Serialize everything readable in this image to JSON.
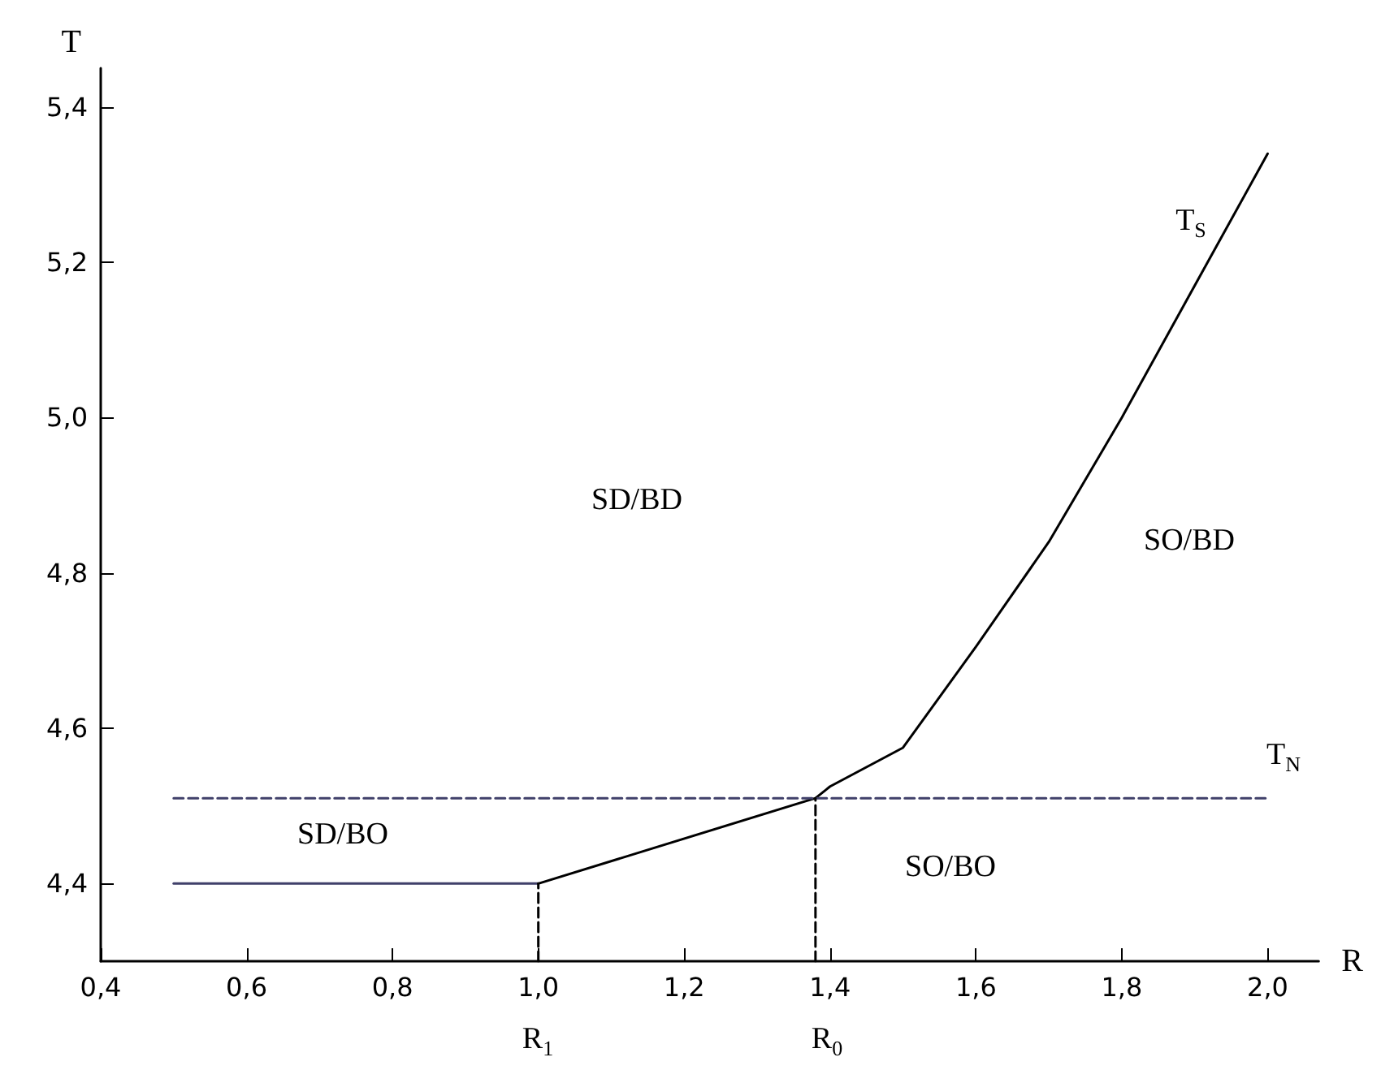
{
  "chart_data": {
    "type": "line",
    "xlabel": "R",
    "ylabel": "T",
    "xlim": [
      0.4,
      2.07
    ],
    "ylim": [
      4.3,
      5.45
    ],
    "xticks": [
      {
        "value": 0.4,
        "label": "0,4"
      },
      {
        "value": 0.6,
        "label": "0,6"
      },
      {
        "value": 0.8,
        "label": "0,8"
      },
      {
        "value": 1.0,
        "label": "1,0"
      },
      {
        "value": 1.2,
        "label": "1,2"
      },
      {
        "value": 1.4,
        "label": "1,4"
      },
      {
        "value": 1.6,
        "label": "1,6"
      },
      {
        "value": 1.8,
        "label": "1,8"
      },
      {
        "value": 2.0,
        "label": "2,0"
      }
    ],
    "yticks": [
      {
        "value": 4.4,
        "label": "4,4"
      },
      {
        "value": 4.6,
        "label": "4,6"
      },
      {
        "value": 4.8,
        "label": "4,8"
      },
      {
        "value": 5.0,
        "label": "5,0"
      },
      {
        "value": 5.2,
        "label": "5,2"
      },
      {
        "value": 5.4,
        "label": "5,4"
      }
    ],
    "grid": false,
    "marker": "none",
    "series": [
      {
        "color": "#40406a",
        "x": [
          0.5,
          1.0
        ],
        "values": [
          4.4,
          4.4
        ],
        "line_style": "solid"
      },
      {
        "color": "#000000",
        "x": [
          1.0,
          1.38,
          1.4,
          1.5,
          1.6,
          1.7,
          1.8,
          1.9,
          2.0
        ],
        "values": [
          4.4,
          4.51,
          4.525,
          4.575,
          4.705,
          4.84,
          5.0,
          5.17,
          5.34
        ],
        "line_style": "solid"
      },
      {
        "color": "#40406a",
        "x": [
          0.5,
          2.0
        ],
        "values": [
          4.51,
          4.51
        ],
        "line_style": "dashed"
      },
      {
        "color": "#000000",
        "x": [
          1.0,
          1.0
        ],
        "values": [
          4.3,
          4.4
        ],
        "line_style": "dashed"
      },
      {
        "color": "#000000",
        "x": [
          1.38,
          1.38
        ],
        "values": [
          4.3,
          4.51
        ],
        "line_style": "dashed"
      }
    ],
    "annotations": [
      "SD/BD",
      "SO/BD",
      "SD/BO",
      "SO/BO",
      "T$_{S}$",
      "T$_{N}$",
      "R$_{1}$",
      "R$_{0}$"
    ]
  }
}
